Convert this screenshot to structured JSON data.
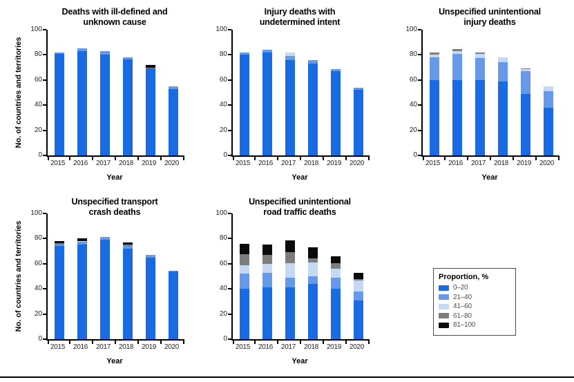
{
  "figure": {
    "y_axis_label": "No. of countries and territories",
    "x_axis_label": "Year",
    "y_ticks": [
      0,
      20,
      40,
      60,
      80,
      100
    ],
    "ylim": [
      0,
      100
    ],
    "years": [
      "2015",
      "2016",
      "2017",
      "2018",
      "2019",
      "2020"
    ]
  },
  "legend": {
    "title": "Proportion, %",
    "items": [
      {
        "label": "0–20",
        "color": "#1a6ae2"
      },
      {
        "label": "21–40",
        "color": "#6699e8"
      },
      {
        "label": "41–60",
        "color": "#c6d9f4"
      },
      {
        "label": "61–80",
        "color": "#7d7d7d"
      },
      {
        "label": "81–100",
        "color": "#0b0b0b"
      }
    ]
  },
  "chart_data": [
    {
      "type": "bar",
      "stacked": true,
      "title": "Deaths with ill-defined and unknown cause",
      "title_lines": [
        "Deaths with ill-defined and",
        "unknown cause"
      ],
      "xlabel": "Year",
      "ylabel": "No. of countries and territories",
      "ylim": [
        0,
        100
      ],
      "grid": false,
      "categories": [
        "2015",
        "2016",
        "2017",
        "2018",
        "2019",
        "2020"
      ],
      "series": [
        {
          "name": "0–20",
          "values": [
            81,
            83,
            80,
            76.5,
            69,
            53
          ]
        },
        {
          "name": "21–40",
          "values": [
            1,
            2,
            3,
            1.5,
            0,
            2
          ]
        },
        {
          "name": "41–60",
          "values": [
            0,
            0,
            0,
            0,
            0,
            0
          ]
        },
        {
          "name": "61–80",
          "values": [
            0,
            0,
            0,
            0,
            1,
            0
          ]
        },
        {
          "name": "81–100",
          "values": [
            0,
            0,
            0,
            0,
            2,
            0
          ]
        }
      ]
    },
    {
      "type": "bar",
      "stacked": true,
      "title": "Injury deaths with undetermined intent",
      "title_lines": [
        "Injury deaths with",
        "undetermined intent"
      ],
      "xlabel": "Year",
      "ylabel": "",
      "ylim": [
        0,
        100
      ],
      "grid": false,
      "categories": [
        "2015",
        "2016",
        "2017",
        "2018",
        "2019",
        "2020"
      ],
      "series": [
        {
          "name": "0–20",
          "values": [
            80,
            82,
            76,
            73,
            67,
            52
          ]
        },
        {
          "name": "21–40",
          "values": [
            2,
            2,
            3,
            3,
            2,
            2
          ]
        },
        {
          "name": "41–60",
          "values": [
            0,
            0,
            3,
            0,
            0,
            0
          ]
        },
        {
          "name": "61–80",
          "values": [
            0,
            0,
            0,
            0,
            0,
            0
          ]
        },
        {
          "name": "81–100",
          "values": [
            0,
            0,
            0,
            0,
            0,
            0
          ]
        }
      ]
    },
    {
      "type": "bar",
      "stacked": true,
      "title": "Unspecified unintentional injury deaths",
      "title_lines": [
        "Unspecified unintentional",
        "injury deaths"
      ],
      "xlabel": "Year",
      "ylabel": "",
      "ylim": [
        0,
        100
      ],
      "grid": false,
      "categories": [
        "2015",
        "2016",
        "2017",
        "2018",
        "2019",
        "2020"
      ],
      "series": [
        {
          "name": "0–20",
          "values": [
            60,
            60,
            60,
            59,
            49,
            38
          ]
        },
        {
          "name": "21–40",
          "values": [
            18,
            21,
            17.5,
            15,
            18,
            13
          ]
        },
        {
          "name": "41–60",
          "values": [
            2.5,
            2,
            3,
            4,
            1.5,
            4
          ]
        },
        {
          "name": "61–80",
          "values": [
            1.5,
            1.5,
            1.5,
            0,
            1,
            0
          ]
        },
        {
          "name": "81–100",
          "values": [
            0,
            0,
            0,
            0,
            0,
            0
          ]
        }
      ]
    },
    {
      "type": "bar",
      "stacked": true,
      "title": "Unspecified transport crash deaths",
      "title_lines": [
        "Unspecified transport",
        "crash deaths"
      ],
      "xlabel": "Year",
      "ylabel": "No. of countries and territories",
      "ylim": [
        0,
        100
      ],
      "grid": false,
      "categories": [
        "2015",
        "2016",
        "2017",
        "2018",
        "2019",
        "2020"
      ],
      "series": [
        {
          "name": "0–20",
          "values": [
            74,
            75.5,
            79,
            72,
            65,
            54
          ]
        },
        {
          "name": "21–40",
          "values": [
            1.5,
            2,
            2.5,
            2,
            2,
            0.5
          ]
        },
        {
          "name": "41–60",
          "values": [
            0,
            0.5,
            0,
            0,
            0,
            0
          ]
        },
        {
          "name": "61–80",
          "values": [
            1,
            0,
            0,
            1.5,
            0,
            0
          ]
        },
        {
          "name": "81–100",
          "values": [
            1.5,
            2.5,
            0,
            1.5,
            0,
            0
          ]
        }
      ]
    },
    {
      "type": "bar",
      "stacked": true,
      "title": "Unspecified unintentional road traffic deaths",
      "title_lines": [
        "Unspecified unintentional",
        "road traffic deaths"
      ],
      "xlabel": "Year",
      "ylabel": "",
      "ylim": [
        0,
        100
      ],
      "grid": false,
      "categories": [
        "2015",
        "2016",
        "2017",
        "2018",
        "2019",
        "2020"
      ],
      "series": [
        {
          "name": "0–20",
          "values": [
            40,
            41,
            41,
            44,
            40,
            31
          ]
        },
        {
          "name": "21–40",
          "values": [
            12,
            12,
            8,
            6,
            9,
            7
          ]
        },
        {
          "name": "41–60",
          "values": [
            7,
            7,
            11.5,
            11,
            7,
            8.5
          ]
        },
        {
          "name": "61–80",
          "values": [
            8.5,
            7,
            9,
            3.5,
            4.5,
            1.5
          ]
        },
        {
          "name": "81–100",
          "values": [
            8.5,
            8.5,
            9,
            8.5,
            5.5,
            5
          ]
        }
      ]
    }
  ]
}
